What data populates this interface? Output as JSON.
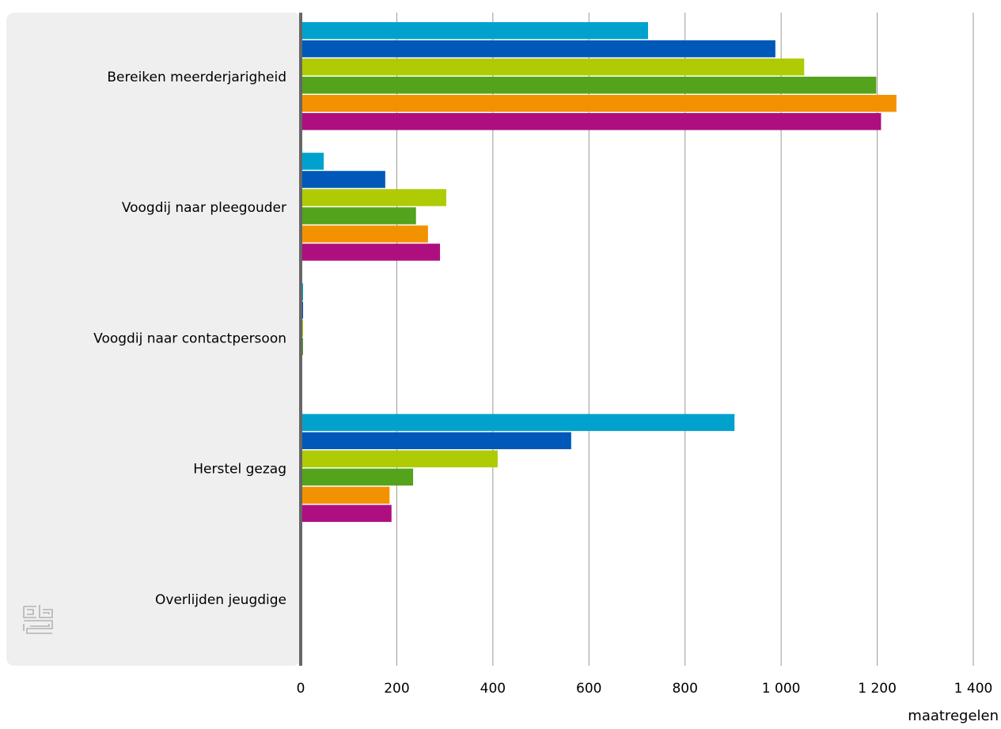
{
  "chart_data": {
    "type": "bar",
    "orientation": "horizontal",
    "xlabel": "maatregelen",
    "xlim": [
      0,
      1400
    ],
    "xticks": [
      0,
      200,
      400,
      600,
      800,
      1000,
      1200,
      1400
    ],
    "xtick_labels": [
      "0",
      "200",
      "400",
      "600",
      "800",
      "1 000",
      "1 200",
      "1 400"
    ],
    "grid": true,
    "categories": [
      "Bereiken meerderjarigheid",
      "Voogdij naar pleegouder",
      "Voogdij naar contactpersoon",
      "Herstel gezag",
      "Overlijden jeugdige"
    ],
    "series": [
      {
        "color": "#00a1cd",
        "values": [
          723,
          48,
          5,
          903,
          0
        ]
      },
      {
        "color": "#0058b8",
        "values": [
          988,
          176,
          5,
          563,
          0
        ]
      },
      {
        "color": "#afcb05",
        "values": [
          1048,
          303,
          5,
          410,
          0
        ]
      },
      {
        "color": "#53a31d",
        "values": [
          1198,
          240,
          5,
          234,
          0
        ]
      },
      {
        "color": "#f39200",
        "values": [
          1240,
          265,
          0,
          185,
          0
        ]
      },
      {
        "color": "#af0e80",
        "values": [
          1208,
          290,
          0,
          189,
          0
        ]
      }
    ]
  },
  "logo": {
    "icon": "cbs-logo-icon",
    "text": "cbs"
  },
  "colors": {
    "panel": "#efefef",
    "axis": "#666666",
    "grid": "#999999",
    "logo": "#b3b3b3"
  }
}
